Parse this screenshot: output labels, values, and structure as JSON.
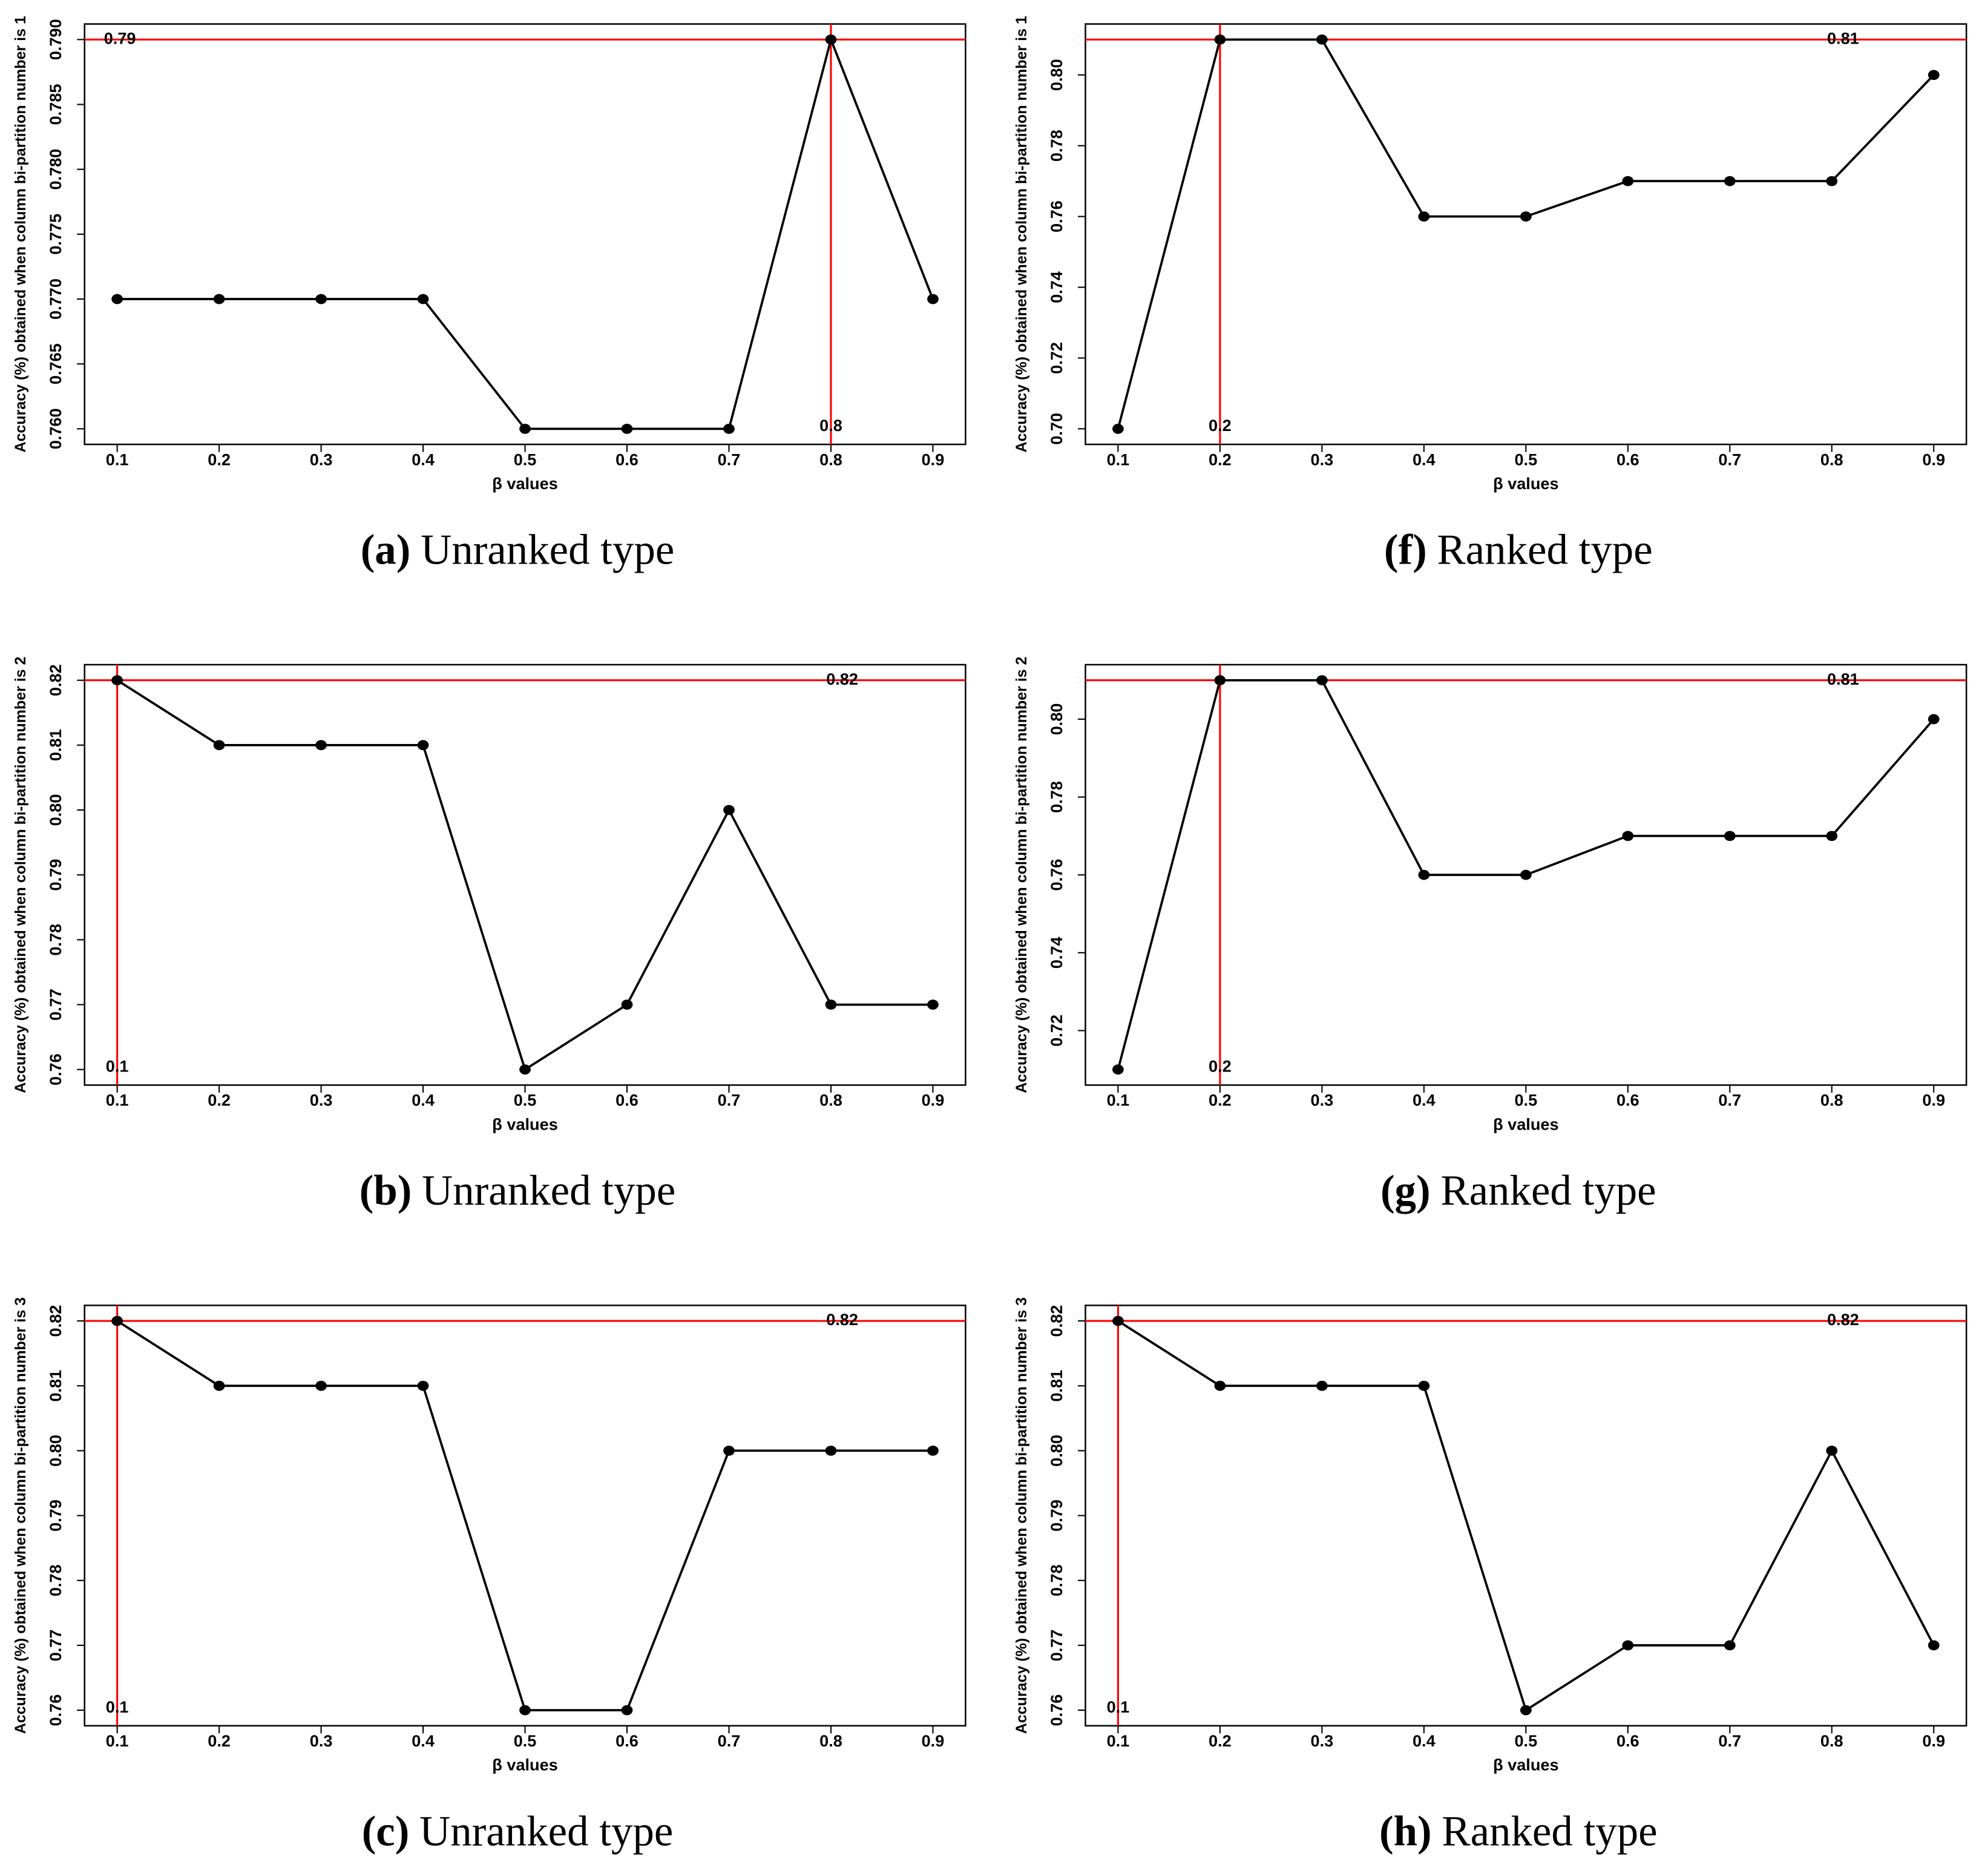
{
  "chart_data": [
    {
      "type": "line",
      "caption_label": "(a)",
      "caption": "Unranked type",
      "xlabel": "β values",
      "ylabel": "Accuracy (%) obtained when column bi-partition number is 1",
      "x": [
        0.1,
        0.2,
        0.3,
        0.4,
        0.5,
        0.6,
        0.7,
        0.8,
        0.9
      ],
      "values": [
        0.77,
        0.77,
        0.77,
        0.77,
        0.76,
        0.76,
        0.76,
        0.79,
        0.77
      ],
      "xlim": [
        0.068,
        0.932
      ],
      "xticks": [
        0.1,
        0.2,
        0.3,
        0.4,
        0.5,
        0.6,
        0.7,
        0.8,
        0.9
      ],
      "ylim": [
        0.7588,
        0.7912
      ],
      "yticks": [
        {
          "value": 0.76,
          "label": "0.760"
        },
        {
          "value": 0.765,
          "label": "0.765"
        },
        {
          "value": 0.77,
          "label": "0.770"
        },
        {
          "value": 0.775,
          "label": "0.775"
        },
        {
          "value": 0.78,
          "label": "0.780"
        },
        {
          "value": 0.785,
          "label": "0.785"
        },
        {
          "value": 0.79,
          "label": "0.790"
        }
      ],
      "hline": 0.79,
      "vline": 0.8,
      "color": "#000000",
      "ref_color": "#ff0000"
    },
    {
      "type": "line",
      "caption_label": "(f)",
      "caption": "Ranked type",
      "xlabel": "β values",
      "ylabel": "Accuracy (%) obtained when column bi-partition number is 1",
      "x": [
        0.1,
        0.2,
        0.3,
        0.4,
        0.5,
        0.6,
        0.7,
        0.8,
        0.9
      ],
      "values": [
        0.7,
        0.81,
        0.81,
        0.76,
        0.76,
        0.77,
        0.77,
        0.77,
        0.8
      ],
      "xlim": [
        0.068,
        0.932
      ],
      "xticks": [
        0.1,
        0.2,
        0.3,
        0.4,
        0.5,
        0.6,
        0.7,
        0.8,
        0.9
      ],
      "ylim": [
        0.6956,
        0.8144
      ],
      "yticks": [
        {
          "value": 0.7,
          "label": "0.70"
        },
        0.72,
        0.74,
        0.76,
        0.78,
        {
          "value": 0.8,
          "label": "0.80"
        }
      ],
      "hline": 0.81,
      "vline": 0.2,
      "color": "#000000",
      "ref_color": "#ff0000"
    },
    {
      "type": "line",
      "caption_label": "(b)",
      "caption": "Unranked type",
      "xlabel": "β values",
      "ylabel": "Accuracy (%) obtained when column bi-partition number is 2",
      "x": [
        0.1,
        0.2,
        0.3,
        0.4,
        0.5,
        0.6,
        0.7,
        0.8,
        0.9
      ],
      "values": [
        0.82,
        0.81,
        0.81,
        0.81,
        0.76,
        0.77,
        0.8,
        0.77,
        0.77
      ],
      "xlim": [
        0.068,
        0.932
      ],
      "xticks": [
        0.1,
        0.2,
        0.3,
        0.4,
        0.5,
        0.6,
        0.7,
        0.8,
        0.9
      ],
      "ylim": [
        0.7576,
        0.8224
      ],
      "yticks": [
        0.76,
        0.77,
        0.78,
        0.79,
        {
          "value": 0.8,
          "label": "0.80"
        },
        0.81,
        0.82
      ],
      "hline": 0.82,
      "vline": 0.1,
      "color": "#000000",
      "ref_color": "#ff0000"
    },
    {
      "type": "line",
      "caption_label": "(g)",
      "caption": "Ranked type",
      "xlabel": "β values",
      "ylabel": "Accuracy (%) obtained when column bi-partition number is 2",
      "x": [
        0.1,
        0.2,
        0.3,
        0.4,
        0.5,
        0.6,
        0.7,
        0.8,
        0.9
      ],
      "values": [
        0.71,
        0.81,
        0.81,
        0.76,
        0.76,
        0.77,
        0.77,
        0.77,
        0.8
      ],
      "xlim": [
        0.068,
        0.932
      ],
      "xticks": [
        0.1,
        0.2,
        0.3,
        0.4,
        0.5,
        0.6,
        0.7,
        0.8,
        0.9
      ],
      "ylim": [
        0.706,
        0.814
      ],
      "yticks": [
        0.72,
        0.74,
        0.76,
        0.78,
        {
          "value": 0.8,
          "label": "0.80"
        }
      ],
      "hline": 0.81,
      "vline": 0.2,
      "color": "#000000",
      "ref_color": "#ff0000"
    },
    {
      "type": "line",
      "caption_label": "(c)",
      "caption": "Unranked type",
      "xlabel": "β values",
      "ylabel": "Accuracy (%) obtained when column bi-partition number is 3",
      "x": [
        0.1,
        0.2,
        0.3,
        0.4,
        0.5,
        0.6,
        0.7,
        0.8,
        0.9
      ],
      "values": [
        0.82,
        0.81,
        0.81,
        0.81,
        0.76,
        0.76,
        0.8,
        0.8,
        0.8
      ],
      "xlim": [
        0.068,
        0.932
      ],
      "xticks": [
        0.1,
        0.2,
        0.3,
        0.4,
        0.5,
        0.6,
        0.7,
        0.8,
        0.9
      ],
      "ylim": [
        0.7576,
        0.8224
      ],
      "yticks": [
        0.76,
        0.77,
        0.78,
        0.79,
        {
          "value": 0.8,
          "label": "0.80"
        },
        0.81,
        0.82
      ],
      "hline": 0.82,
      "vline": 0.1,
      "color": "#000000",
      "ref_color": "#ff0000"
    },
    {
      "type": "line",
      "caption_label": "(h)",
      "caption": "Ranked type",
      "xlabel": "β values",
      "ylabel": "Accuracy (%) obtained when column bi-partition number is 3",
      "x": [
        0.1,
        0.2,
        0.3,
        0.4,
        0.5,
        0.6,
        0.7,
        0.8,
        0.9
      ],
      "values": [
        0.82,
        0.81,
        0.81,
        0.81,
        0.76,
        0.77,
        0.77,
        0.8,
        0.77
      ],
      "xlim": [
        0.068,
        0.932
      ],
      "xticks": [
        0.1,
        0.2,
        0.3,
        0.4,
        0.5,
        0.6,
        0.7,
        0.8,
        0.9
      ],
      "ylim": [
        0.7576,
        0.8224
      ],
      "yticks": [
        0.76,
        0.77,
        0.78,
        0.79,
        {
          "value": 0.8,
          "label": "0.80"
        },
        0.81,
        0.82
      ],
      "hline": 0.82,
      "vline": 0.1,
      "color": "#000000",
      "ref_color": "#ff0000"
    }
  ]
}
